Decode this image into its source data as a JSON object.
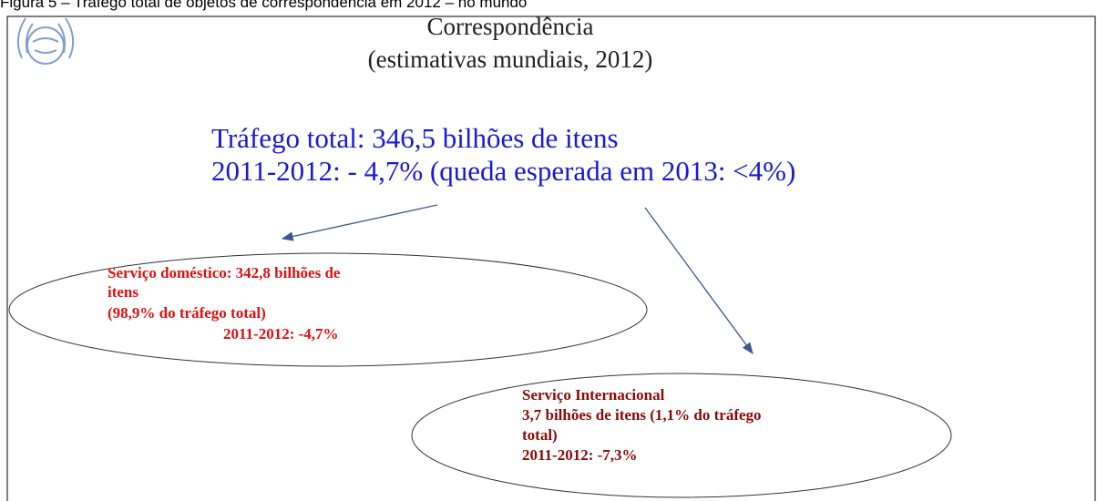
{
  "caption": "Figura 5 – Tráfego total de objetos de correspondência em 2012 – no mundo",
  "title": [
    "Correspondência",
    "(estimativas mundiais, 2012)"
  ],
  "headline": [
    "Tráfego total: 346,5 bilhões de itens",
    "2011-2012: - 4,7% (queda esperada em 2013: <4%)"
  ],
  "nodes": [
    {
      "lines": [
        "Serviço doméstico: 342,8 bilhões de",
        "itens",
        "(98,9% do tráfego total)",
        "2011-2012: -4,7%"
      ]
    },
    {
      "lines": [
        "Serviço Internacional",
        "3,7 bilhões de itens (1,1% do tráfego",
        "total)",
        "2011-2012: -7,3%"
      ]
    }
  ]
}
